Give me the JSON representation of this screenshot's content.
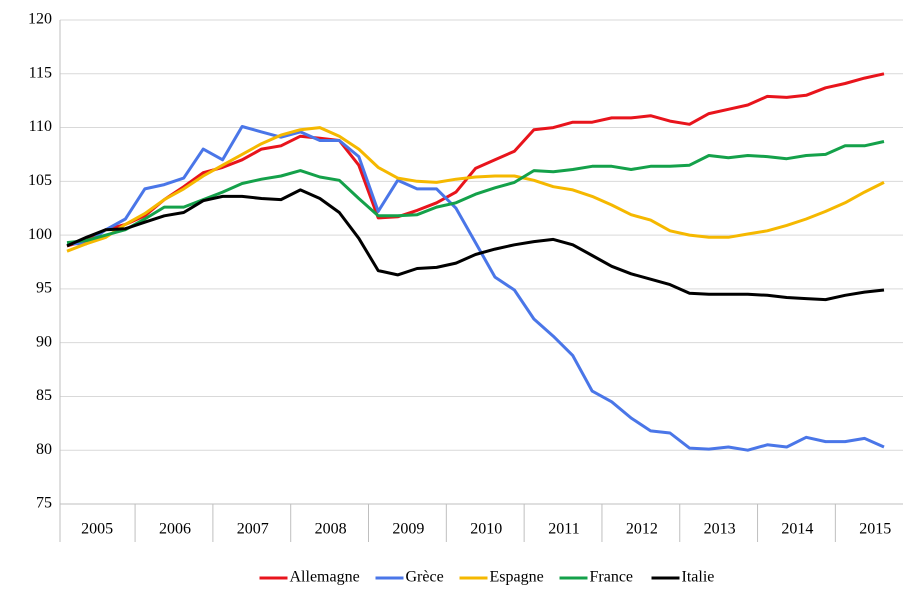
{
  "chart_data": {
    "type": "line",
    "categories": [
      null,
      null,
      "2005",
      null,
      null,
      null,
      "2006",
      null,
      null,
      null,
      "2007",
      null,
      null,
      null,
      "2008",
      null,
      null,
      null,
      "2009",
      null,
      null,
      null,
      "2010",
      null,
      null,
      null,
      "2011",
      null,
      null,
      null,
      "2012",
      null,
      null,
      null,
      "2013",
      null,
      null,
      null,
      "2014",
      null,
      null,
      null,
      "2015"
    ],
    "series": [
      {
        "name": "Allemagne",
        "color": "#e8141c",
        "values": [
          99,
          99.5,
          100.5,
          101,
          101.8,
          103.3,
          104.5,
          105.8,
          106.3,
          107,
          108,
          108.3,
          109.2,
          109,
          108.8,
          106.5,
          101.6,
          101.7,
          102.3,
          103,
          104,
          106.2,
          107,
          107.8,
          109.8,
          110,
          110.5,
          110.5,
          110.9,
          110.9,
          111.1,
          110.6,
          110.3,
          111.3,
          111.7,
          112.1,
          112.9,
          112.8,
          113,
          113.7,
          114.1,
          114.6,
          115
        ]
      },
      {
        "name": "Grèce",
        "color": "#4a76e8",
        "values": [
          99.2,
          99.2,
          100.5,
          101.5,
          104.3,
          104.7,
          105.3,
          108,
          107,
          110.1,
          109.6,
          109.1,
          109.6,
          108.8,
          108.8,
          107.3,
          102.2,
          105.1,
          104.3,
          104.3,
          102.5,
          99.3,
          96.1,
          94.9,
          92.2,
          90.6,
          88.8,
          85.5,
          84.5,
          83,
          81.8,
          81.6,
          80.2,
          80.1,
          80.3,
          80,
          80.5,
          80.3,
          81.2,
          80.8,
          80.8,
          81.1,
          80.3
        ]
      },
      {
        "name": "Espagne",
        "color": "#f5b800",
        "values": [
          98.5,
          99.2,
          99.8,
          101,
          102,
          103.3,
          104.3,
          105.5,
          106.5,
          107.5,
          108.5,
          109.3,
          109.8,
          110,
          109.2,
          108,
          106.3,
          105.3,
          105,
          104.9,
          105.2,
          105.4,
          105.5,
          105.5,
          105.1,
          104.5,
          104.2,
          103.6,
          102.8,
          101.9,
          101.4,
          100.4,
          100,
          99.8,
          99.8,
          100.1,
          100.4,
          100.9,
          101.5,
          102.2,
          103,
          104,
          104.9
        ]
      },
      {
        "name": "France",
        "color": "#14a14a",
        "values": [
          99.3,
          99.5,
          100,
          100.5,
          101.5,
          102.6,
          102.6,
          103.3,
          104,
          104.8,
          105.2,
          105.5,
          106,
          105.4,
          105.1,
          103.4,
          101.8,
          101.8,
          101.9,
          102.6,
          103,
          103.8,
          104.4,
          104.9,
          106,
          105.9,
          106.1,
          106.4,
          106.4,
          106.1,
          106.4,
          106.4,
          106.5,
          107.4,
          107.2,
          107.4,
          107.3,
          107.1,
          107.4,
          107.5,
          108.3,
          108.3,
          108.7
        ]
      },
      {
        "name": "Italie",
        "color": "#000000",
        "values": [
          99,
          99.8,
          100.5,
          100.6,
          101.2,
          101.8,
          102.1,
          103.2,
          103.6,
          103.6,
          103.4,
          103.3,
          104.2,
          103.4,
          102.1,
          99.7,
          96.7,
          96.3,
          96.9,
          97,
          97.4,
          98.2,
          98.7,
          99.1,
          99.4,
          99.6,
          99.1,
          98.1,
          97.1,
          96.4,
          95.9,
          95.4,
          94.6,
          94.5,
          94.5,
          94.5,
          94.4,
          94.2,
          94.1,
          94,
          94.4,
          94.7,
          94.9
        ]
      }
    ],
    "ylim": [
      75,
      120
    ],
    "yticks": [
      75,
      80,
      85,
      90,
      95,
      100,
      105,
      110,
      115,
      120
    ],
    "grid": true,
    "legend": "bottom"
  }
}
